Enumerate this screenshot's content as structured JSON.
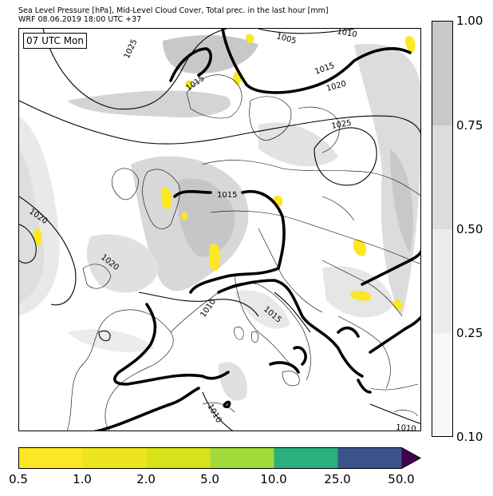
{
  "title": {
    "line1": "Sea Level Pressure [hPa], Mid-Level Cloud Cover, Total prec. in the last hour [mm]",
    "line2": "WRF 08.06.2019 18:00 UTC +37"
  },
  "time_label": "07 UTC Mon",
  "isobar_labels": [
    "1025",
    "1005",
    "1010",
    "1015",
    "1015",
    "1020",
    "1025",
    "1015",
    "1020",
    "1020",
    "1010",
    "1015",
    "1010",
    "1010"
  ],
  "cloud_colorbar": {
    "ticks": [
      "1.00",
      "0.75",
      "0.50",
      "0.25",
      "0.10"
    ],
    "colors": [
      "#c8c8c8",
      "#dcdcdc",
      "#ececec",
      "#f8f8f8"
    ]
  },
  "precip_colorbar": {
    "ticks": [
      "0.5",
      "1.0",
      "2.0",
      "5.0",
      "10.0",
      "25.0",
      "50.0"
    ],
    "colors": [
      "#fde725",
      "#eee51c",
      "#d8e219",
      "#a0da39",
      "#2ab07f",
      "#3b528b",
      "#440154"
    ]
  }
}
